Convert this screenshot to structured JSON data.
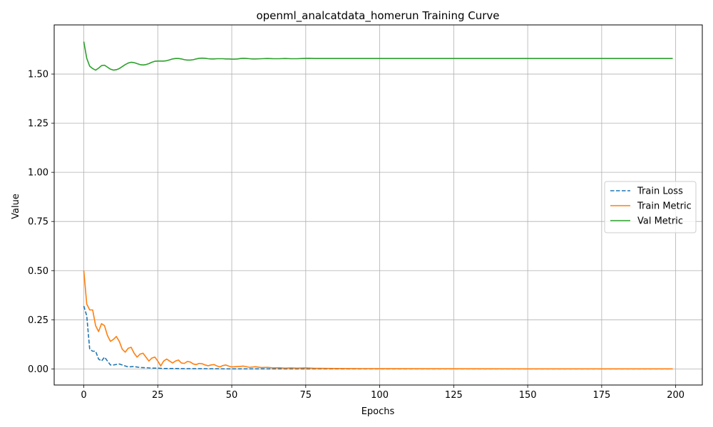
{
  "chart_data": {
    "type": "line",
    "title": "openml_analcatdata_homerun Training Curve",
    "xlabel": "Epochs",
    "ylabel": "Value",
    "xlim": [
      -10,
      209
    ],
    "ylim": [
      -0.082,
      1.75
    ],
    "xticks": [
      0,
      25,
      50,
      75,
      100,
      125,
      150,
      175,
      200
    ],
    "xtick_labels": [
      "0",
      "25",
      "50",
      "75",
      "100",
      "125",
      "150",
      "175",
      "200"
    ],
    "yticks": [
      0.0,
      0.25,
      0.5,
      0.75,
      1.0,
      1.25,
      1.5
    ],
    "ytick_labels": [
      "0.00",
      "0.25",
      "0.50",
      "0.75",
      "1.00",
      "1.25",
      "1.50"
    ],
    "grid": true,
    "legend_position": "center-right",
    "series": [
      {
        "name": "Train Loss",
        "color": "#1f77b4",
        "style": "dashed",
        "points": [
          [
            0,
            0.32
          ],
          [
            1,
            0.27
          ],
          [
            2,
            0.1
          ],
          [
            3,
            0.09
          ],
          [
            4,
            0.09
          ],
          [
            5,
            0.05
          ],
          [
            6,
            0.04
          ],
          [
            7,
            0.06
          ],
          [
            8,
            0.04
          ],
          [
            9,
            0.02
          ],
          [
            10,
            0.02
          ],
          [
            12,
            0.025
          ],
          [
            13,
            0.02
          ],
          [
            15,
            0.01
          ],
          [
            17,
            0.012
          ],
          [
            19,
            0.007
          ],
          [
            21,
            0.006
          ],
          [
            23,
            0.004
          ],
          [
            25,
            0.004
          ],
          [
            27,
            0.002
          ],
          [
            30,
            0.002
          ],
          [
            35,
            0.001
          ],
          [
            40,
            0.001
          ],
          [
            50,
            0.0
          ],
          [
            75,
            0.0
          ],
          [
            100,
            0.0
          ],
          [
            150,
            0.0
          ],
          [
            199,
            0.0
          ]
        ]
      },
      {
        "name": "Train Metric",
        "color": "#ff7f0e",
        "style": "solid",
        "points": [
          [
            0,
            0.5
          ],
          [
            1,
            0.33
          ],
          [
            2,
            0.3
          ],
          [
            3,
            0.3
          ],
          [
            4,
            0.22
          ],
          [
            5,
            0.19
          ],
          [
            6,
            0.23
          ],
          [
            7,
            0.22
          ],
          [
            8,
            0.17
          ],
          [
            9,
            0.14
          ],
          [
            10,
            0.15
          ],
          [
            11,
            0.165
          ],
          [
            12,
            0.14
          ],
          [
            13,
            0.1
          ],
          [
            14,
            0.085
          ],
          [
            15,
            0.105
          ],
          [
            16,
            0.11
          ],
          [
            17,
            0.08
          ],
          [
            18,
            0.06
          ],
          [
            19,
            0.075
          ],
          [
            20,
            0.08
          ],
          [
            21,
            0.06
          ],
          [
            22,
            0.04
          ],
          [
            23,
            0.055
          ],
          [
            24,
            0.06
          ],
          [
            25,
            0.04
          ],
          [
            26,
            0.015
          ],
          [
            27,
            0.04
          ],
          [
            28,
            0.05
          ],
          [
            29,
            0.04
          ],
          [
            30,
            0.03
          ],
          [
            31,
            0.04
          ],
          [
            32,
            0.045
          ],
          [
            33,
            0.03
          ],
          [
            34,
            0.028
          ],
          [
            35,
            0.038
          ],
          [
            36,
            0.035
          ],
          [
            37,
            0.025
          ],
          [
            38,
            0.022
          ],
          [
            39,
            0.028
          ],
          [
            40,
            0.026
          ],
          [
            41,
            0.02
          ],
          [
            42,
            0.016
          ],
          [
            43,
            0.02
          ],
          [
            44,
            0.022
          ],
          [
            45,
            0.015
          ],
          [
            46,
            0.01
          ],
          [
            47,
            0.017
          ],
          [
            48,
            0.02
          ],
          [
            49,
            0.014
          ],
          [
            50,
            0.01
          ],
          [
            52,
            0.012
          ],
          [
            54,
            0.014
          ],
          [
            56,
            0.008
          ],
          [
            58,
            0.011
          ],
          [
            60,
            0.007
          ],
          [
            62,
            0.008
          ],
          [
            64,
            0.005
          ],
          [
            66,
            0.006
          ],
          [
            68,
            0.004
          ],
          [
            70,
            0.005
          ],
          [
            72,
            0.004
          ],
          [
            75,
            0.005
          ],
          [
            78,
            0.003
          ],
          [
            80,
            0.003
          ],
          [
            85,
            0.002
          ],
          [
            90,
            0.0015
          ],
          [
            100,
            0.001
          ],
          [
            125,
            0.0005
          ],
          [
            150,
            0.0003
          ],
          [
            175,
            0.0002
          ],
          [
            199,
            0.0001
          ]
        ]
      },
      {
        "name": "Val Metric",
        "color": "#2ca02c",
        "style": "solid",
        "points": [
          [
            0,
            1.665
          ],
          [
            1,
            1.58
          ],
          [
            2,
            1.54
          ],
          [
            3,
            1.528
          ],
          [
            4,
            1.52
          ],
          [
            5,
            1.53
          ],
          [
            6,
            1.543
          ],
          [
            7,
            1.545
          ],
          [
            8,
            1.535
          ],
          [
            9,
            1.525
          ],
          [
            10,
            1.52
          ],
          [
            11,
            1.522
          ],
          [
            12,
            1.528
          ],
          [
            13,
            1.538
          ],
          [
            14,
            1.548
          ],
          [
            15,
            1.556
          ],
          [
            16,
            1.56
          ],
          [
            17,
            1.558
          ],
          [
            18,
            1.553
          ],
          [
            19,
            1.548
          ],
          [
            20,
            1.546
          ],
          [
            21,
            1.548
          ],
          [
            22,
            1.553
          ],
          [
            23,
            1.56
          ],
          [
            24,
            1.565
          ],
          [
            25,
            1.566
          ],
          [
            26,
            1.566
          ],
          [
            27,
            1.566
          ],
          [
            28,
            1.568
          ],
          [
            29,
            1.572
          ],
          [
            30,
            1.577
          ],
          [
            31,
            1.579
          ],
          [
            32,
            1.579
          ],
          [
            33,
            1.577
          ],
          [
            34,
            1.573
          ],
          [
            35,
            1.571
          ],
          [
            36,
            1.571
          ],
          [
            37,
            1.573
          ],
          [
            38,
            1.577
          ],
          [
            39,
            1.58
          ],
          [
            40,
            1.581
          ],
          [
            41,
            1.58
          ],
          [
            42,
            1.578
          ],
          [
            43,
            1.577
          ],
          [
            44,
            1.577
          ],
          [
            45,
            1.578
          ],
          [
            46,
            1.578
          ],
          [
            47,
            1.578
          ],
          [
            48,
            1.577
          ],
          [
            49,
            1.577
          ],
          [
            50,
            1.576
          ],
          [
            51,
            1.576
          ],
          [
            52,
            1.577
          ],
          [
            53,
            1.579
          ],
          [
            54,
            1.58
          ],
          [
            55,
            1.579
          ],
          [
            56,
            1.578
          ],
          [
            57,
            1.577
          ],
          [
            58,
            1.577
          ],
          [
            60,
            1.578
          ],
          [
            62,
            1.579
          ],
          [
            64,
            1.578
          ],
          [
            66,
            1.578
          ],
          [
            68,
            1.579
          ],
          [
            70,
            1.578
          ],
          [
            72,
            1.578
          ],
          [
            74,
            1.579
          ],
          [
            76,
            1.58
          ],
          [
            78,
            1.579
          ],
          [
            80,
            1.579
          ],
          [
            85,
            1.579
          ],
          [
            90,
            1.579
          ],
          [
            95,
            1.579
          ],
          [
            100,
            1.579
          ],
          [
            125,
            1.579
          ],
          [
            150,
            1.579
          ],
          [
            175,
            1.579
          ],
          [
            199,
            1.579
          ]
        ]
      }
    ]
  }
}
